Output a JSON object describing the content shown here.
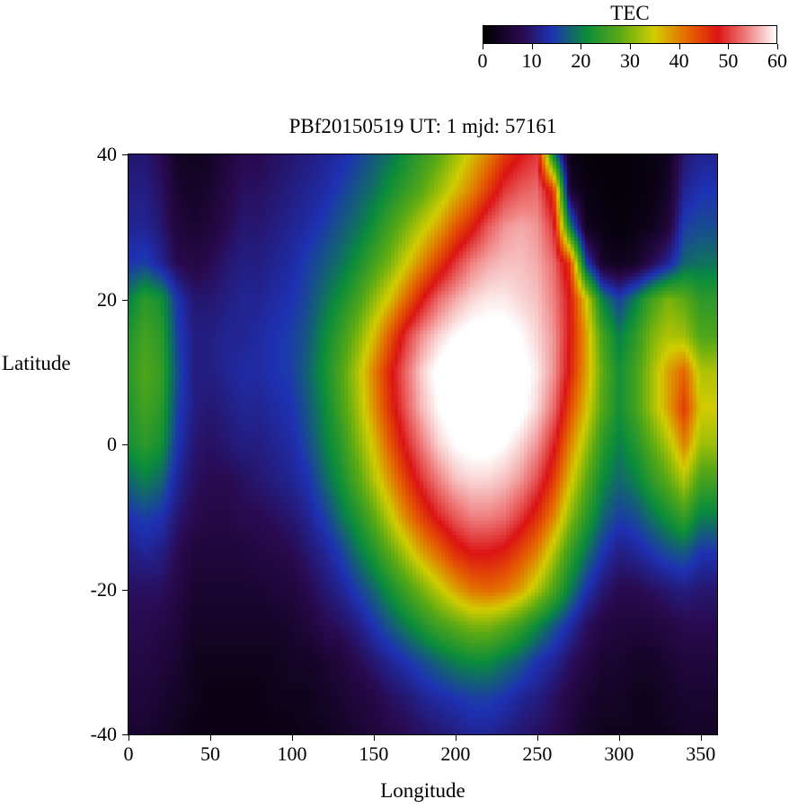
{
  "chart_data": {
    "type": "heatmap",
    "title": "PBf20150519  UT: 1  mjd: 57161",
    "xlabel": "Longitude",
    "ylabel": "Latitude",
    "xrange": [
      0,
      360
    ],
    "yrange": [
      -40,
      40
    ],
    "zrange": [
      0,
      60
    ],
    "xticks": [
      0,
      50,
      100,
      150,
      200,
      250,
      300,
      350
    ],
    "yticks": [
      40,
      20,
      0,
      -20,
      -40
    ],
    "grid": "off",
    "colorbar": {
      "label": "TEC",
      "min": 0,
      "max": 60,
      "ticks": [
        0,
        10,
        20,
        30,
        40,
        50,
        60
      ],
      "position": "top-right",
      "stops": [
        {
          "v": 0,
          "c": "#000000"
        },
        {
          "v": 8,
          "c": "#2a0a50"
        },
        {
          "v": 14,
          "c": "#1e32b4"
        },
        {
          "v": 21,
          "c": "#0a8c3c"
        },
        {
          "v": 28,
          "c": "#5aaa14"
        },
        {
          "v": 35,
          "c": "#d2cd00"
        },
        {
          "v": 42,
          "c": "#e66400"
        },
        {
          "v": 48,
          "c": "#dc1414"
        },
        {
          "v": 54,
          "c": "#f08080"
        },
        {
          "v": 60,
          "c": "#ffffff"
        }
      ]
    },
    "x_longitudes_deg": [
      0,
      10,
      20,
      30,
      40,
      50,
      60,
      70,
      80,
      90,
      100,
      110,
      120,
      130,
      140,
      150,
      160,
      170,
      180,
      190,
      200,
      210,
      220,
      230,
      240,
      250,
      260,
      270,
      280,
      290,
      300,
      310,
      320,
      330,
      340,
      350
    ],
    "y_latitudes_deg": [
      40,
      35,
      30,
      25,
      20,
      15,
      10,
      5,
      0,
      -5,
      -10,
      -15,
      -20,
      -25,
      -30,
      -35,
      -40
    ],
    "values_tec": [
      [
        10,
        10,
        8,
        4,
        3,
        4,
        6,
        8,
        8,
        9,
        10,
        11,
        12,
        13,
        15,
        17,
        19,
        22,
        25,
        28,
        32,
        36,
        40,
        45,
        48,
        50,
        20,
        2,
        1,
        1,
        1,
        1,
        2,
        3,
        10,
        12
      ],
      [
        11,
        11,
        9,
        5,
        4,
        5,
        7,
        9,
        9,
        10,
        11,
        12,
        13,
        15,
        17,
        19,
        22,
        25,
        28,
        32,
        36,
        40,
        45,
        50,
        52,
        53,
        45,
        5,
        2,
        1,
        1,
        1,
        2,
        4,
        12,
        14
      ],
      [
        12,
        12,
        10,
        6,
        5,
        6,
        8,
        10,
        10,
        11,
        12,
        13,
        15,
        17,
        19,
        22,
        26,
        30,
        34,
        38,
        43,
        47,
        52,
        55,
        56,
        55,
        50,
        20,
        3,
        2,
        1,
        2,
        3,
        6,
        15,
        16
      ],
      [
        14,
        15,
        12,
        8,
        7,
        8,
        10,
        11,
        11,
        12,
        13,
        15,
        17,
        19,
        22,
        26,
        30,
        35,
        40,
        45,
        50,
        54,
        56,
        57,
        57,
        56,
        53,
        45,
        15,
        4,
        3,
        4,
        8,
        12,
        18,
        19
      ],
      [
        20,
        24,
        22,
        14,
        10,
        10,
        11,
        12,
        12,
        13,
        14,
        16,
        19,
        22,
        26,
        31,
        36,
        42,
        48,
        53,
        56,
        58,
        59,
        59,
        58,
        57,
        54,
        48,
        35,
        20,
        15,
        20,
        26,
        30,
        28,
        24
      ],
      [
        23,
        26,
        24,
        15,
        11,
        11,
        12,
        12,
        13,
        14,
        15,
        17,
        21,
        25,
        30,
        36,
        43,
        50,
        55,
        58,
        60,
        61,
        61,
        61,
        60,
        58,
        55,
        48,
        38,
        26,
        20,
        24,
        30,
        33,
        32,
        27
      ],
      [
        24,
        27,
        25,
        16,
        11,
        11,
        12,
        13,
        13,
        14,
        15,
        18,
        22,
        27,
        33,
        40,
        47,
        53,
        58,
        61,
        62,
        62,
        62,
        62,
        61,
        59,
        55,
        47,
        38,
        28,
        22,
        26,
        32,
        38,
        42,
        33
      ],
      [
        23,
        26,
        24,
        15,
        11,
        10,
        11,
        12,
        12,
        13,
        14,
        17,
        21,
        26,
        32,
        39,
        46,
        52,
        57,
        60,
        62,
        62,
        62,
        62,
        61,
        58,
        53,
        44,
        36,
        27,
        22,
        26,
        32,
        38,
        45,
        35
      ],
      [
        22,
        24,
        22,
        14,
        10,
        9,
        10,
        11,
        11,
        12,
        13,
        16,
        20,
        24,
        30,
        36,
        43,
        49,
        54,
        58,
        60,
        61,
        61,
        60,
        58,
        55,
        49,
        40,
        32,
        24,
        20,
        23,
        28,
        33,
        40,
        32
      ],
      [
        18,
        20,
        18,
        12,
        9,
        8,
        8,
        9,
        10,
        11,
        12,
        14,
        18,
        22,
        27,
        33,
        39,
        45,
        50,
        54,
        57,
        58,
        58,
        57,
        55,
        51,
        45,
        36,
        28,
        21,
        18,
        20,
        24,
        28,
        33,
        26
      ],
      [
        14,
        15,
        14,
        10,
        8,
        7,
        7,
        8,
        8,
        9,
        10,
        12,
        15,
        19,
        23,
        28,
        34,
        40,
        45,
        49,
        52,
        54,
        54,
        53,
        50,
        46,
        40,
        31,
        24,
        18,
        15,
        16,
        19,
        22,
        25,
        20
      ],
      [
        11,
        12,
        11,
        8,
        6,
        6,
        6,
        6,
        7,
        7,
        8,
        10,
        12,
        15,
        19,
        23,
        28,
        33,
        38,
        42,
        46,
        48,
        48,
        47,
        44,
        40,
        33,
        25,
        19,
        14,
        11,
        12,
        14,
        16,
        17,
        14
      ],
      [
        9,
        9,
        9,
        7,
        5,
        5,
        5,
        5,
        5,
        6,
        6,
        8,
        10,
        12,
        15,
        18,
        22,
        26,
        30,
        34,
        38,
        41,
        42,
        41,
        38,
        33,
        27,
        20,
        14,
        10,
        8,
        8,
        9,
        10,
        11,
        10
      ],
      [
        8,
        8,
        7,
        6,
        4,
        4,
        4,
        4,
        4,
        4,
        5,
        6,
        8,
        9,
        11,
        14,
        17,
        20,
        23,
        26,
        28,
        30,
        30,
        28,
        25,
        21,
        17,
        13,
        9,
        7,
        6,
        6,
        6,
        7,
        8,
        8
      ],
      [
        7,
        7,
        6,
        5,
        3,
        3,
        3,
        3,
        3,
        3,
        4,
        4,
        5,
        6,
        8,
        10,
        12,
        14,
        16,
        18,
        20,
        21,
        21,
        19,
        17,
        14,
        12,
        9,
        7,
        5,
        5,
        4,
        4,
        5,
        6,
        6
      ],
      [
        6,
        6,
        5,
        4,
        3,
        2,
        2,
        2,
        2,
        3,
        3,
        3,
        4,
        5,
        6,
        7,
        9,
        10,
        12,
        13,
        14,
        15,
        15,
        14,
        12,
        11,
        9,
        7,
        5,
        4,
        4,
        3,
        3,
        4,
        5,
        5
      ],
      [
        5,
        5,
        4,
        3,
        2,
        2,
        2,
        2,
        2,
        2,
        2,
        3,
        3,
        4,
        5,
        6,
        7,
        8,
        9,
        10,
        11,
        12,
        12,
        11,
        10,
        9,
        8,
        6,
        4,
        3,
        3,
        3,
        3,
        3,
        4,
        4
      ]
    ]
  }
}
